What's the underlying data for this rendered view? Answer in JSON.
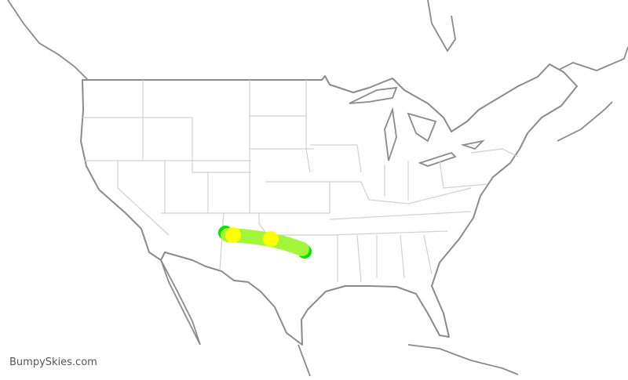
{
  "watermark": "BumpySkies.com",
  "route": {
    "colors": {
      "line": "#a3f53a",
      "endpoint": "#00e600",
      "marker": "#ffff00"
    },
    "waypoint_count": 2
  },
  "map": {
    "border_color": "#8a8a8a",
    "state_line_color": "#d0d0d0"
  }
}
